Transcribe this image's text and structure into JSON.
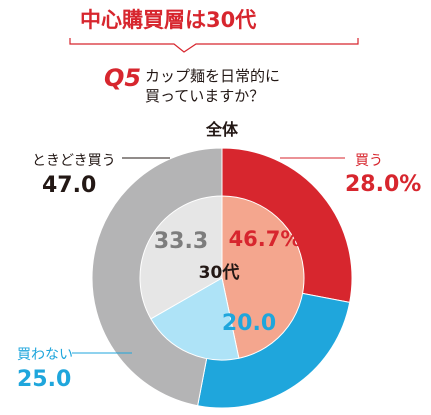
{
  "header": {
    "headline": "中心購買層は30代",
    "question_number": "Q5",
    "question_lines": [
      "カップ麺を日常的に",
      "買っていますか？"
    ]
  },
  "chart_data": {
    "type": "pie",
    "charts": [
      {
        "ring": "outer",
        "title": "全体",
        "slices": [
          {
            "label": "買う",
            "value": 28.0,
            "display": "28.0%",
            "color": "#d7262e"
          },
          {
            "label": "買わない",
            "value": 25.0,
            "display": "25.0",
            "color": "#1fa6dc"
          },
          {
            "label": "ときどき買う",
            "value": 47.0,
            "display": "47.0",
            "color": "#b4b4b5"
          }
        ]
      },
      {
        "ring": "inner",
        "title": "30代",
        "slices": [
          {
            "label": "買う",
            "value": 46.7,
            "display": "46.7%",
            "color": "#f4a68e"
          },
          {
            "label": "買わない",
            "value": 20.0,
            "display": "20.0",
            "color": "#aee3f7"
          },
          {
            "label": "ときどき買う",
            "value": 33.3,
            "display": "33.3",
            "color": "#e6e6e6"
          }
        ]
      }
    ],
    "text_colors": {
      "buy": "#d7262e",
      "notbuy": "#1fa6dc",
      "sometimes": "#231815",
      "inner_sometimes": "#7d7d7d"
    }
  }
}
